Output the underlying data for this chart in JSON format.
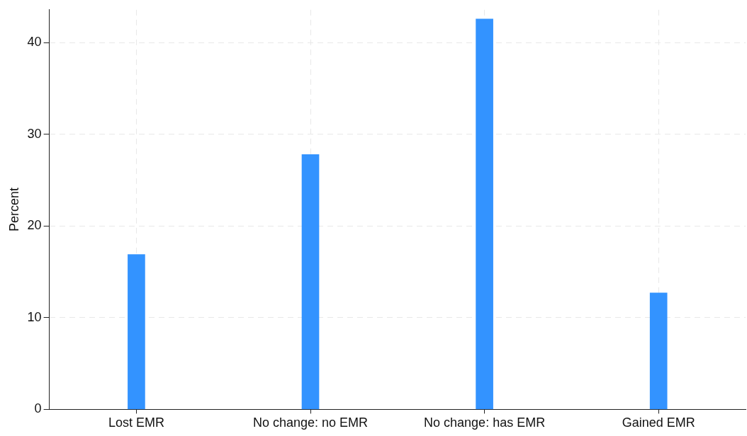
{
  "chart_data": {
    "type": "bar",
    "ylabel": "Percent",
    "categories": [
      "Lost EMR",
      "No change: no EMR",
      "No change: has EMR",
      "Gained EMR"
    ],
    "values": [
      16.9,
      27.8,
      42.6,
      12.7
    ],
    "color": "#3393ff",
    "ylim": [
      0,
      43.6
    ],
    "yticks": [
      0,
      10,
      20,
      30,
      40
    ],
    "grid": true
  }
}
